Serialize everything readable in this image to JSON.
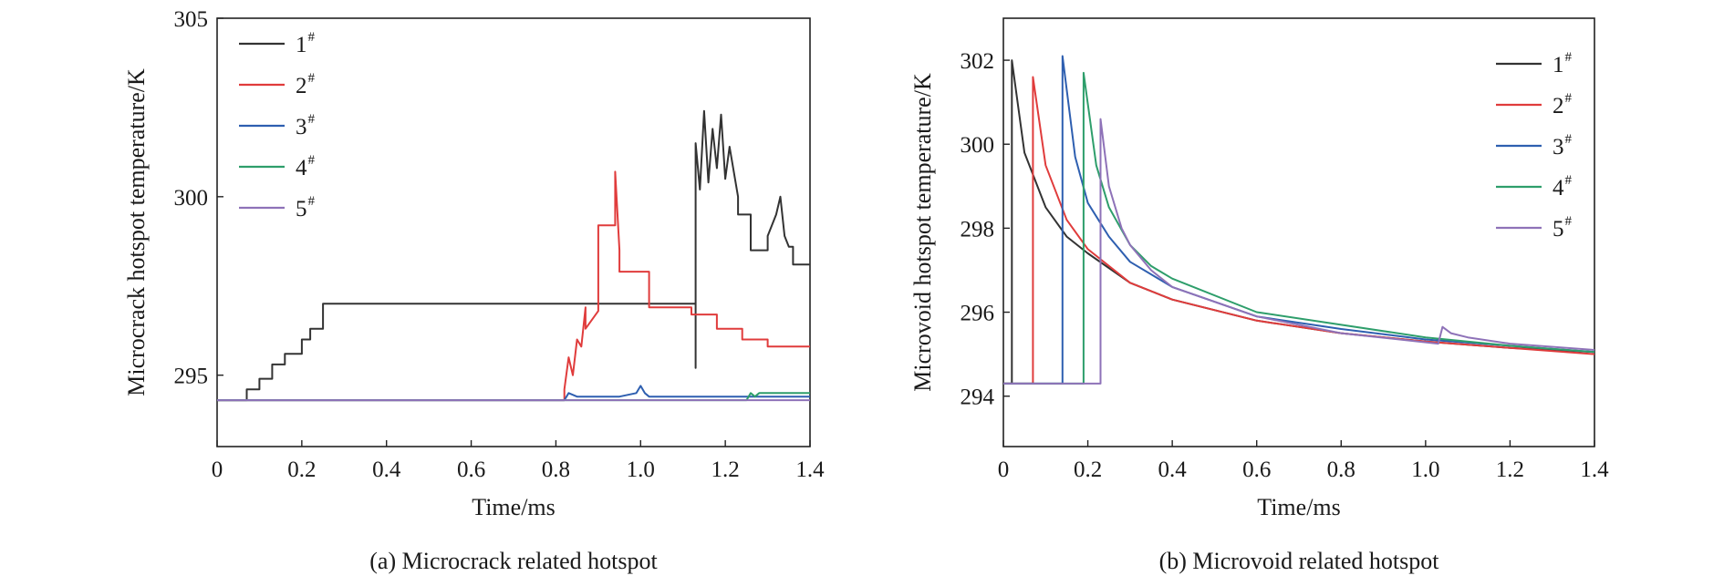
{
  "chart_data": [
    {
      "type": "line",
      "caption": "(a) Microcrack related hotspot",
      "xlabel": "Time/ms",
      "ylabel": "Microcrack hotspot temperature/K",
      "xlim": [
        0,
        1.4
      ],
      "ylim": [
        293,
        305
      ],
      "x_ticks": [
        "0",
        "0.2",
        "0.4",
        "0.6",
        "0.8",
        "1.0",
        "1.2",
        "1.4"
      ],
      "y_ticks": [
        "295",
        "300",
        "305"
      ],
      "legend_position": "top-left",
      "series": [
        {
          "name": "1",
          "sup": "#",
          "color": "#333333",
          "x": [
            0,
            0.07,
            0.07,
            0.1,
            0.1,
            0.13,
            0.13,
            0.16,
            0.16,
            0.2,
            0.2,
            0.22,
            0.22,
            0.25,
            0.25,
            1.13,
            1.13,
            1.13,
            1.14,
            1.15,
            1.16,
            1.17,
            1.18,
            1.19,
            1.2,
            1.21,
            1.23,
            1.23,
            1.26,
            1.26,
            1.3,
            1.3,
            1.32,
            1.33,
            1.34,
            1.35,
            1.36,
            1.36,
            1.4
          ],
          "y": [
            294.3,
            294.3,
            294.6,
            294.6,
            294.9,
            294.9,
            295.3,
            295.3,
            295.6,
            295.6,
            296,
            296,
            296.3,
            296.3,
            297,
            297,
            295.2,
            301.5,
            300.2,
            302.4,
            300.4,
            301.9,
            300.8,
            302.3,
            300.5,
            301.4,
            300,
            299.5,
            299.5,
            298.5,
            298.5,
            298.9,
            299.5,
            300,
            298.9,
            298.6,
            298.6,
            298.1,
            298.1
          ]
        },
        {
          "name": "2",
          "sup": "#",
          "color": "#e03c3c",
          "x": [
            0,
            0.82,
            0.82,
            0.83,
            0.84,
            0.85,
            0.86,
            0.87,
            0.87,
            0.9,
            0.9,
            0.94,
            0.94,
            0.95,
            0.95,
            1.02,
            1.02,
            1.12,
            1.12,
            1.18,
            1.18,
            1.24,
            1.24,
            1.3,
            1.3,
            1.4
          ],
          "y": [
            294.3,
            294.3,
            294.6,
            295.5,
            295,
            296,
            295.8,
            296.9,
            296.3,
            296.8,
            299.2,
            299.2,
            300.7,
            298.5,
            297.9,
            297.9,
            296.9,
            296.9,
            296.7,
            296.7,
            296.3,
            296.3,
            296,
            296,
            295.8,
            295.8
          ]
        },
        {
          "name": "3",
          "sup": "#",
          "color": "#2e5fb0",
          "x": [
            0,
            0.82,
            0.83,
            0.85,
            0.95,
            0.99,
            1.0,
            1.01,
            1.02,
            1.4
          ],
          "y": [
            294.3,
            294.3,
            294.5,
            294.4,
            294.4,
            294.5,
            294.7,
            294.5,
            294.4,
            294.4
          ]
        },
        {
          "name": "4",
          "sup": "#",
          "color": "#2e9e6b",
          "x": [
            0,
            1.25,
            1.26,
            1.27,
            1.28,
            1.4
          ],
          "y": [
            294.3,
            294.3,
            294.5,
            294.4,
            294.5,
            294.5
          ]
        },
        {
          "name": "5",
          "sup": "#",
          "color": "#8e72b8",
          "x": [
            0,
            1.4
          ],
          "y": [
            294.3,
            294.3
          ]
        }
      ]
    },
    {
      "type": "line",
      "caption": "(b) Microvoid related hotspot",
      "xlabel": "Time/ms",
      "ylabel": "Microvoid hotspot temperature/K",
      "xlim": [
        0,
        1.4
      ],
      "ylim": [
        292.8,
        303
      ],
      "x_ticks": [
        "0",
        "0.2",
        "0.4",
        "0.6",
        "0.8",
        "1.0",
        "1.2",
        "1.4"
      ],
      "y_ticks": [
        "294",
        "296",
        "298",
        "300",
        "302"
      ],
      "legend_position": "top-right",
      "series": [
        {
          "name": "1",
          "sup": "#",
          "color": "#333333",
          "x": [
            0,
            0.02,
            0.02,
            0.05,
            0.1,
            0.15,
            0.2,
            0.3,
            0.4,
            0.6,
            0.8,
            1.0,
            1.2,
            1.4
          ],
          "y": [
            294.3,
            294.3,
            302,
            299.8,
            298.5,
            297.8,
            297.4,
            296.7,
            296.3,
            295.8,
            295.5,
            295.3,
            295.15,
            295.05
          ]
        },
        {
          "name": "2",
          "sup": "#",
          "color": "#e03c3c",
          "x": [
            0,
            0.07,
            0.07,
            0.1,
            0.15,
            0.2,
            0.3,
            0.4,
            0.6,
            0.8,
            1.0,
            1.2,
            1.4
          ],
          "y": [
            294.3,
            294.3,
            301.6,
            299.5,
            298.2,
            297.5,
            296.7,
            296.3,
            295.8,
            295.5,
            295.3,
            295.15,
            295
          ]
        },
        {
          "name": "3",
          "sup": "#",
          "color": "#2e5fb0",
          "x": [
            0,
            0.14,
            0.14,
            0.17,
            0.2,
            0.25,
            0.3,
            0.4,
            0.6,
            0.8,
            1.0,
            1.2,
            1.4
          ],
          "y": [
            294.3,
            294.3,
            302.1,
            299.7,
            298.6,
            297.8,
            297.2,
            296.6,
            295.9,
            295.6,
            295.35,
            295.2,
            295.05
          ]
        },
        {
          "name": "4",
          "sup": "#",
          "color": "#2e9e6b",
          "x": [
            0,
            0.19,
            0.19,
            0.22,
            0.25,
            0.3,
            0.35,
            0.4,
            0.6,
            0.8,
            1.0,
            1.2,
            1.4
          ],
          "y": [
            294.3,
            294.3,
            301.7,
            299.5,
            298.5,
            297.6,
            297.1,
            296.8,
            296,
            295.7,
            295.4,
            295.2,
            295.05
          ]
        },
        {
          "name": "5",
          "sup": "#",
          "color": "#8e72b8",
          "x": [
            0,
            0.23,
            0.23,
            0.25,
            0.28,
            0.3,
            0.35,
            0.4,
            0.6,
            0.8,
            1.03,
            1.04,
            1.06,
            1.1,
            1.2,
            1.4
          ],
          "y": [
            294.3,
            294.3,
            300.6,
            299,
            298,
            297.6,
            297,
            296.6,
            295.9,
            295.5,
            295.25,
            295.65,
            295.5,
            295.4,
            295.25,
            295.1
          ]
        }
      ]
    }
  ]
}
